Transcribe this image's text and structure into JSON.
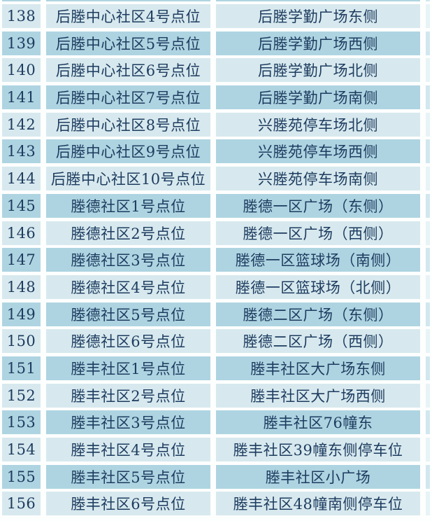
{
  "table": {
    "rows": [
      {
        "no": "138",
        "name": "后塍中心社区4号点位",
        "location": "后塍学勤广场东侧"
      },
      {
        "no": "139",
        "name": "后塍中心社区5号点位",
        "location": "后塍学勤广场西侧"
      },
      {
        "no": "140",
        "name": "后塍中心社区6号点位",
        "location": "后塍学勤广场北侧"
      },
      {
        "no": "141",
        "name": "后塍中心社区7号点位",
        "location": "后塍学勤广场南侧"
      },
      {
        "no": "142",
        "name": "后塍中心社区8号点位",
        "location": "兴塍苑停车场北侧"
      },
      {
        "no": "143",
        "name": "后塍中心社区9号点位",
        "location": "兴塍苑停车场西侧"
      },
      {
        "no": "144",
        "name": "后塍中心社区10号点位",
        "location": "兴塍苑停车场南侧"
      },
      {
        "no": "145",
        "name": "塍德社区1号点位",
        "location": "塍德一区广场（东侧）"
      },
      {
        "no": "146",
        "name": "塍德社区2号点位",
        "location": "塍德一区广场（西侧）"
      },
      {
        "no": "147",
        "name": "塍德社区3号点位",
        "location": "塍德一区篮球场（南侧）"
      },
      {
        "no": "148",
        "name": "塍德社区4号点位",
        "location": "塍德一区篮球场（北侧）"
      },
      {
        "no": "149",
        "name": "塍德社区5号点位",
        "location": "塍德二区广场（东侧）"
      },
      {
        "no": "150",
        "name": "塍德社区6号点位",
        "location": "塍德二区广场（西侧）"
      },
      {
        "no": "151",
        "name": "塍丰社区1号点位",
        "location": "塍丰社区大广场东侧"
      },
      {
        "no": "152",
        "name": "塍丰社区2号点位",
        "location": "塍丰社区大广场西侧"
      },
      {
        "no": "153",
        "name": "塍丰社区3号点位",
        "location": "塍丰社区76幢东"
      },
      {
        "no": "154",
        "name": "塍丰社区4号点位",
        "location": "塍丰社区39幢东侧停车位"
      },
      {
        "no": "155",
        "name": "塍丰社区5号点位",
        "location": "塍丰社区小广场"
      },
      {
        "no": "156",
        "name": "塍丰社区6号点位",
        "location": "塍丰社区48幢南侧停车位"
      }
    ]
  },
  "colors": {
    "row_light": "#d7e9ee",
    "row_dark": "#aed4e1",
    "text": "#1e3c60",
    "gap": "#fdfefe"
  }
}
